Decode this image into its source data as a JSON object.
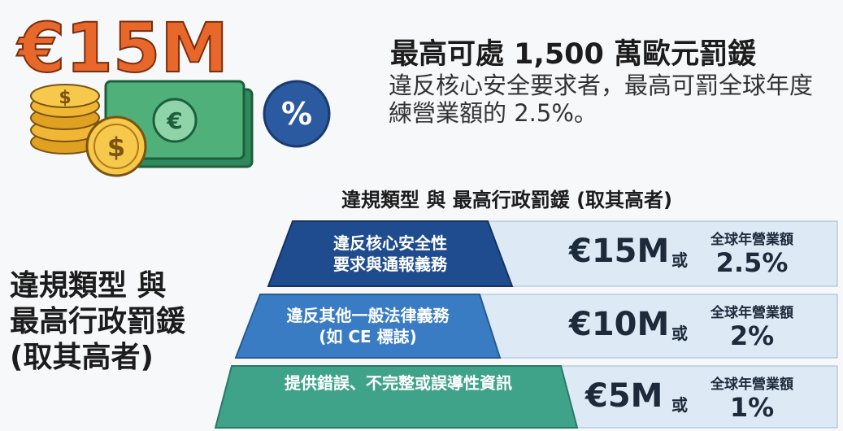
{
  "header": {
    "big_amount": "€15M",
    "icon": "%",
    "title": "最高可處 1,500 萬歐元罰鍰",
    "description": "違反核心安全要求者，最高可罰全球年度練營業額的 2.5%。"
  },
  "table": {
    "heading": "違規類型 與 最高行政罰鍰 (取其高者)",
    "side_label": [
      "違規類型 與",
      "最高行政罰鍰",
      "(取其高者)"
    ],
    "rows": [
      {
        "violation": [
          "違反核心安全性",
          "要求與通報義務"
        ],
        "amount": "€15M",
        "or": "或",
        "basis": "全球年營業額",
        "percent": "2.5%"
      },
      {
        "violation": [
          "違反其他一般法律義務",
          "(如 CE 標誌)"
        ],
        "amount": "€10M",
        "or": "或",
        "basis": "全球年營業額",
        "percent": "2%"
      },
      {
        "violation": [
          "提供錯誤、不完整或誤導性資訊"
        ],
        "amount": "€5M",
        "or": "或",
        "basis": "全球年營業額",
        "percent": "1%"
      }
    ]
  }
}
